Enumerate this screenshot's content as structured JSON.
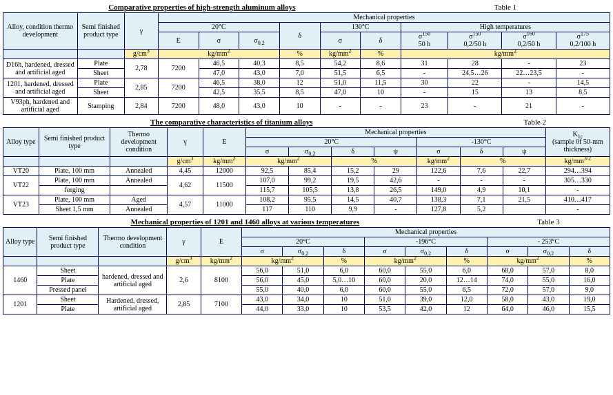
{
  "t1": {
    "title": "Comparative properties of high-strength aluminum alloys",
    "label": "Table 1",
    "h": {
      "alloy": "Alloy, condition thermo development",
      "semi": "Semi finished product type",
      "gamma": "γ",
      "mech": "Mechanical properties",
      "t20": "20°C",
      "t130": "130°C",
      "high": "High temperatures",
      "E": "E",
      "s": "σ",
      "s02": "σ",
      "s02_sub": "0,2",
      "d": "δ",
      "s150_50": "σ",
      "s150_50_sup": "150",
      "s150_50_sub": "50 h",
      "s150_0250": "σ",
      "s150_0250_sup": "150",
      "s150_0250_sub": "0,2/50 h",
      "s160_0250": "σ",
      "s160_0250_sup": "160",
      "s160_0250_sub": "0,2/50 h",
      "s175_02100": "σ",
      "s175_02100_sup": "175",
      "s175_02100_sub": "0,2/100 h"
    },
    "u": {
      "gcm3": "g/cm",
      "kgmm2": "kg/mm",
      "pct": "%"
    },
    "r": [
      {
        "alloy": "D16h, hardened, dressed and artificial aged",
        "sub": [
          {
            "semi": "Plate",
            "g": "2,78",
            "E": "7200",
            "s": "46,5",
            "s02": "40,3",
            "d": "8,5",
            "s130": "54,2",
            "d130": "8,6",
            "h1": "31",
            "h2": "28",
            "h3": "-",
            "h4": "23"
          },
          {
            "semi": "Sheet",
            "g": "",
            "E": "",
            "s": "47,0",
            "s02": "43,0",
            "d": "7,0",
            "s130": "51,5",
            "d130": "6,5",
            "h1": "-",
            "h2": "24,5…26",
            "h3": "22…23,5",
            "h4": "-"
          }
        ]
      },
      {
        "alloy": "1201, hardened, dressed and artificial aged",
        "sub": [
          {
            "semi": "Plate",
            "g": "2,85",
            "E": "7200",
            "s": "46,5",
            "s02": "38,0",
            "d": "12",
            "s130": "51,0",
            "d130": "11,5",
            "h1": "30",
            "h2": "22",
            "h3": "-",
            "h4": "14,5"
          },
          {
            "semi": "Sheet",
            "g": "",
            "E": "",
            "s": "42,5",
            "s02": "35,5",
            "d": "8,5",
            "s130": "47,0",
            "d130": "10",
            "h1": "-",
            "h2": "15",
            "h3": "13",
            "h4": "8,5"
          }
        ]
      },
      {
        "alloy": "V93ph, hardened and artificial aged",
        "sub": [
          {
            "semi": "Stamping",
            "g": "2,84",
            "E": "7200",
            "s": "48,0",
            "s02": "43,0",
            "d": "10",
            "s130": "-",
            "d130": "-",
            "h1": "23",
            "h2": "-",
            "h3": "21",
            "h4": "-"
          }
        ]
      }
    ]
  },
  "t2": {
    "title": "The comparative characteristics of titanium alloys",
    "label": "Table 2",
    "h": {
      "alloy": "Alloy type",
      "semi": "Semi finished product type",
      "thermo": "Thermo development condition",
      "gamma": "γ",
      "E": "E",
      "mech": "Mechanical properties",
      "t20": "20°C",
      "tm130": "-130°C",
      "s": "σ",
      "s02": "σ",
      "s02_sub": "0,2",
      "d": "δ",
      "psi": "ψ",
      "k1c": "K",
      "k1c_sub": "1c",
      "k1c_note": "(sample 0f 50-mm thickness)"
    },
    "u": {
      "gcm3": "g/cm",
      "kgmm2": "kg/mm",
      "pct": "%",
      "kgmm32": "kg/mm"
    },
    "r": [
      {
        "alloy": "VT20",
        "semi": "Plate, 100 mm",
        "th": "Annealed",
        "g": "4,45",
        "E": "12000",
        "s": "92,5",
        "s02": "85,4",
        "d": "15,2",
        "psi": "29",
        "sm": "122,6",
        "dm": "7,6",
        "psim": "22,7",
        "k": "294…394"
      },
      {
        "alloy": "VT22",
        "semi": "Plate, 100 mm",
        "th": "Annealed",
        "g": "4,62",
        "E": "11500",
        "s": "107,0",
        "s02": "99,2",
        "d": "19,5",
        "psi": "42,6",
        "sm": "-",
        "dm": "-",
        "psim": "-",
        "k": "305…330"
      },
      {
        "alloy": "",
        "semi": "forging",
        "th": "",
        "g": "",
        "E": "",
        "s": "115,7",
        "s02": "105,5",
        "d": "13,8",
        "psi": "26,5",
        "sm": "149,0",
        "dm": "4,9",
        "psim": "10,1",
        "k": "-"
      },
      {
        "alloy": "VT23",
        "semi": "Plate, 100 mm",
        "th": "Aged",
        "g": "4,57",
        "E": "11000",
        "s": "108,2",
        "s02": "95,5",
        "d": "14,5",
        "psi": "40,7",
        "sm": "138,3",
        "dm": "7,1",
        "psim": "21,5",
        "k": "410…417"
      },
      {
        "alloy": "",
        "semi": "Sheet 1,5 mm",
        "th": "Annealed",
        "g": "",
        "E": "",
        "s": "117",
        "s02": "110",
        "d": "9,9",
        "psi": "-",
        "sm": "127,8",
        "dm": "5,2",
        "psim": "",
        "k": "-"
      }
    ]
  },
  "t3": {
    "title": "Mechanical properties of 1201 and 1460 alloys at various temperatures",
    "label": "Table 3",
    "h": {
      "alloy": "Alloy type",
      "semi": "Semi finished product type",
      "thermo": "Thermo development condition",
      "gamma": "γ",
      "E": "E",
      "mech": "Mechanical properties",
      "t20": "20°C",
      "tm196": "-196°C",
      "tm253": "- 253°C",
      "s": "σ",
      "s02": "σ",
      "s02_sub": "0,2",
      "d": "δ"
    },
    "u": {
      "gcm3": "g/cm",
      "kgmm2": "kg/mm",
      "pct": "%"
    },
    "r": [
      {
        "alloy": "1460",
        "semi": "Sheet",
        "th": "hardened, dressed and artificial aged",
        "g": "2,6",
        "E": "8100",
        "v": [
          "56,0",
          "51,0",
          "6,0",
          "60,0",
          "55,0",
          "6,0",
          "68,0",
          "57,0",
          "8,0"
        ]
      },
      {
        "alloy": "",
        "semi": "Plate",
        "th": "",
        "g": "",
        "E": "",
        "v": [
          "56,0",
          "45,0",
          "5,0…10",
          "60,0",
          "20,0",
          "12…14",
          "74,0",
          "55,0",
          "16,0"
        ]
      },
      {
        "alloy": "",
        "semi": "Pressed panel",
        "th": "",
        "g": "",
        "E": "",
        "v": [
          "55,0",
          "40,0",
          "6,0",
          "60,0",
          "55,0",
          "6,5",
          "72,0",
          "57,0",
          "9,0"
        ]
      },
      {
        "alloy": "1201",
        "semi": "Sheet",
        "th": "Hardened, dressed, artificial aged",
        "g": "2,85",
        "E": "7100",
        "v": [
          "43,0",
          "34,0",
          "10",
          "51,0",
          "39,0",
          "12,0",
          "58,0",
          "43,0",
          "19,0"
        ]
      },
      {
        "alloy": "",
        "semi": "Plate",
        "th": "",
        "g": "",
        "E": "",
        "v": [
          "44,0",
          "33,0",
          "10",
          "53,5",
          "42,0",
          "12",
          "64,0",
          "46,0",
          "15,5"
        ]
      }
    ]
  }
}
